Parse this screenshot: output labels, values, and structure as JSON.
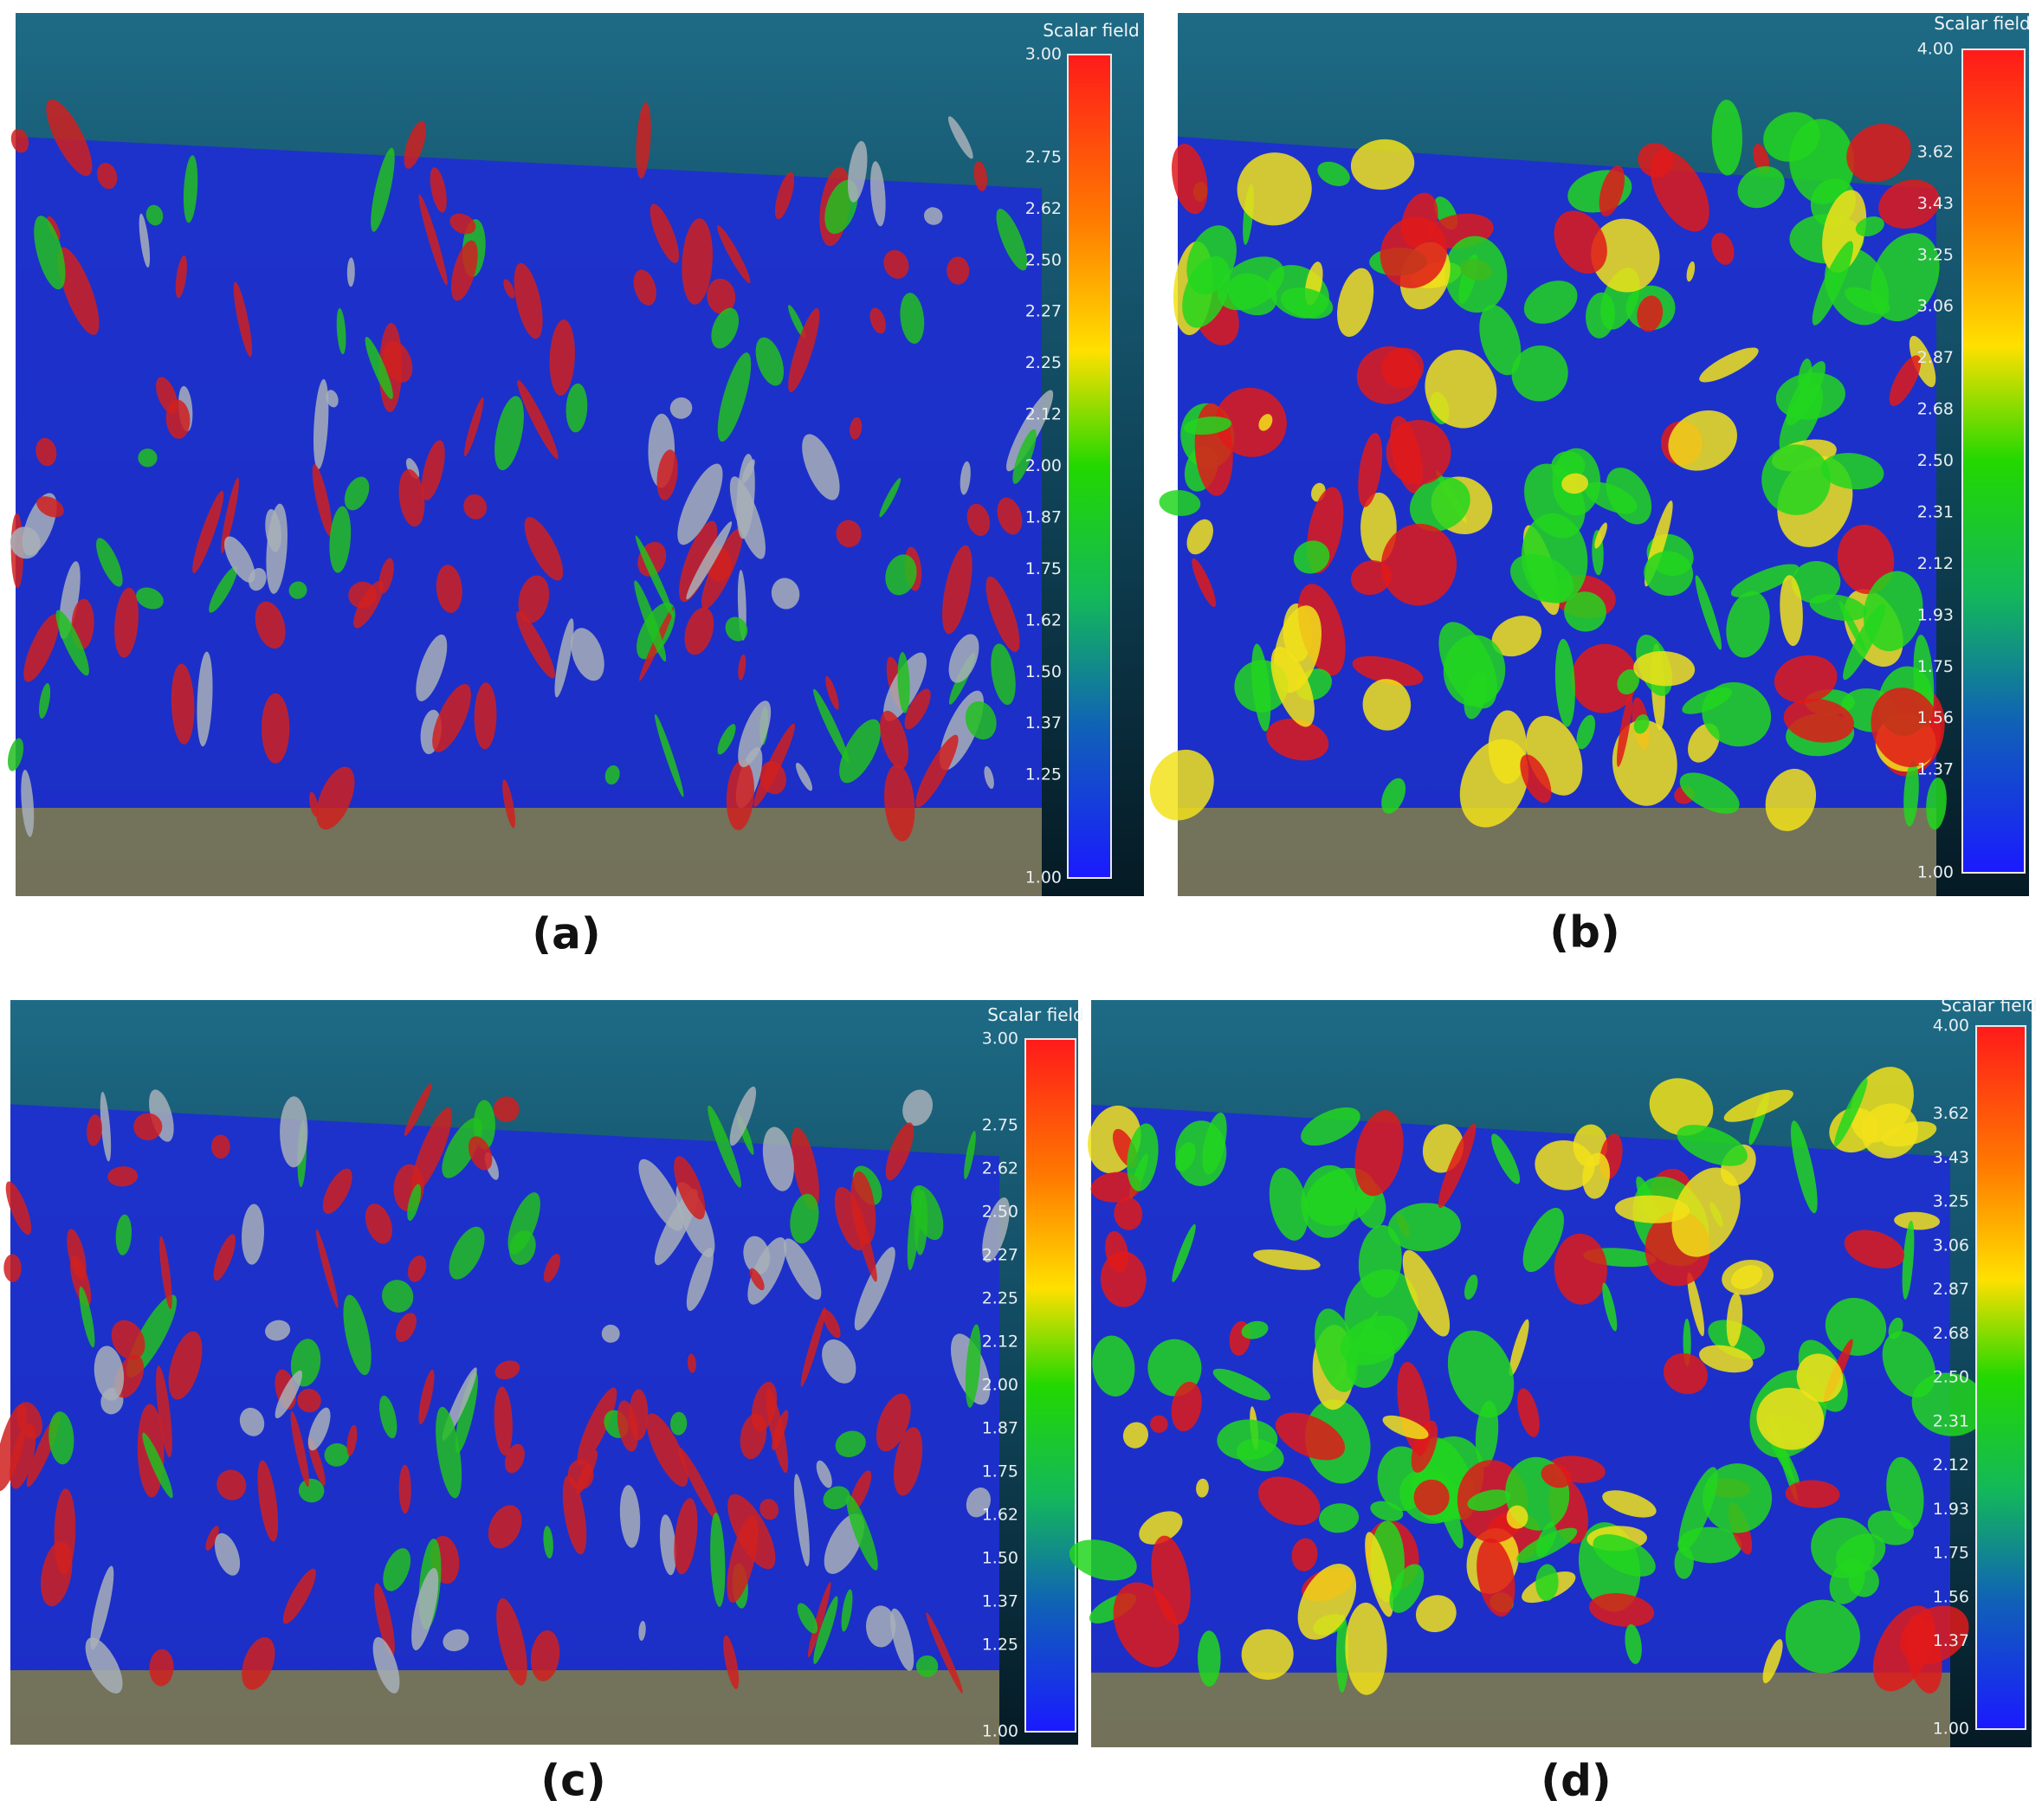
{
  "panels": [
    {
      "caption": "(a)",
      "colorbar": {
        "title": "Scalar field",
        "ticks": [
          "3.00",
          "2.75",
          "2.62",
          "2.50",
          "2.27",
          "2.25",
          "2.12",
          "2.00",
          "1.87",
          "1.75",
          "1.62",
          "1.50",
          "1.37",
          "1.25",
          "1.00"
        ]
      }
    },
    {
      "caption": "(b)",
      "colorbar": {
        "title": "Scalar field",
        "ticks": [
          "4.00",
          "3.62",
          "3.43",
          "3.25",
          "3.06",
          "2.87",
          "2.68",
          "2.50",
          "2.31",
          "2.12",
          "1.93",
          "1.75",
          "1.56",
          "1.37",
          "1.00"
        ]
      }
    },
    {
      "caption": "(c)",
      "colorbar": {
        "title": "Scalar field",
        "ticks": [
          "3.00",
          "2.75",
          "2.62",
          "2.50",
          "2.27",
          "2.25",
          "2.12",
          "2.00",
          "1.87",
          "1.75",
          "1.62",
          "1.50",
          "1.37",
          "1.25",
          "1.00"
        ]
      }
    },
    {
      "caption": "(d)",
      "colorbar": {
        "title": "Scalar field",
        "ticks": [
          "4.00",
          "3.62",
          "3.43",
          "3.25",
          "3.06",
          "2.87",
          "2.68",
          "2.50",
          "2.31",
          "2.12",
          "1.93",
          "1.75",
          "1.56",
          "1.37",
          "1.00"
        ]
      }
    }
  ]
}
